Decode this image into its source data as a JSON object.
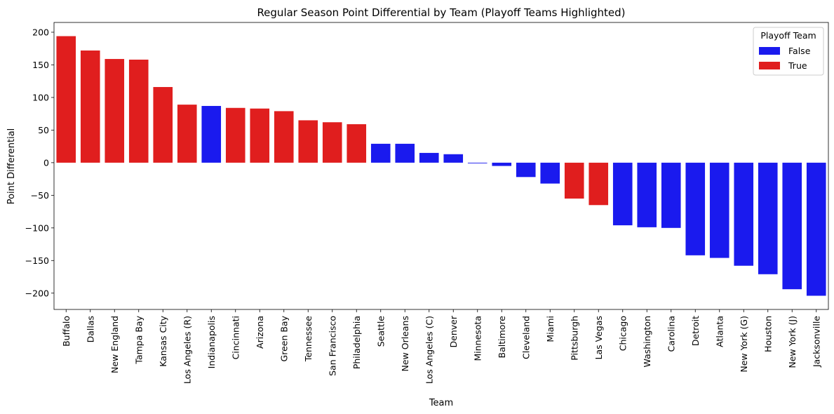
{
  "chart_data": {
    "type": "bar",
    "title": "Regular Season Point Differential by Team (Playoff Teams Highlighted)",
    "xlabel": "Team",
    "ylabel": "Point Differential",
    "ylim": [
      -225,
      215
    ],
    "yticks": [
      -200,
      -150,
      -100,
      -50,
      0,
      50,
      100,
      150,
      200
    ],
    "ytick_labels": [
      "−200",
      "−150",
      "−100",
      "−50",
      "0",
      "50",
      "100",
      "150",
      "200"
    ],
    "grid": false,
    "legend": {
      "title": "Playoff Team",
      "placement": "top-right",
      "entries": [
        {
          "label": "False",
          "color": "#1a1aee"
        },
        {
          "label": "True",
          "color": "#e01e1e"
        }
      ]
    },
    "categories": [
      "Buffalo",
      "Dallas",
      "New England",
      "Tampa Bay",
      "Kansas City",
      "Los Angeles (R)",
      "Indianapolis",
      "Cincinnati",
      "Arizona",
      "Green Bay",
      "Tennessee",
      "San Francisco",
      "Philadelphia",
      "Seattle",
      "New Orleans",
      "Los Angeles (C)",
      "Denver",
      "Minnesota",
      "Baltimore",
      "Cleveland",
      "Miami",
      "Pittsburgh",
      "Las Vegas",
      "Chicago",
      "Washington",
      "Carolina",
      "Detroit",
      "Atlanta",
      "New York (G)",
      "Houston",
      "New York (J)",
      "Jacksonville"
    ],
    "values": [
      194,
      172,
      159,
      158,
      116,
      89,
      87,
      84,
      83,
      79,
      65,
      62,
      59,
      29,
      29,
      15,
      13,
      -1,
      -5,
      -22,
      -32,
      -55,
      -65,
      -96,
      -99,
      -100,
      -142,
      -146,
      -158,
      -171,
      -194,
      -204
    ],
    "playoff": [
      true,
      true,
      true,
      true,
      true,
      true,
      false,
      true,
      true,
      true,
      true,
      true,
      true,
      false,
      false,
      false,
      false,
      false,
      false,
      false,
      false,
      true,
      true,
      false,
      false,
      false,
      false,
      false,
      false,
      false,
      false,
      false
    ]
  }
}
